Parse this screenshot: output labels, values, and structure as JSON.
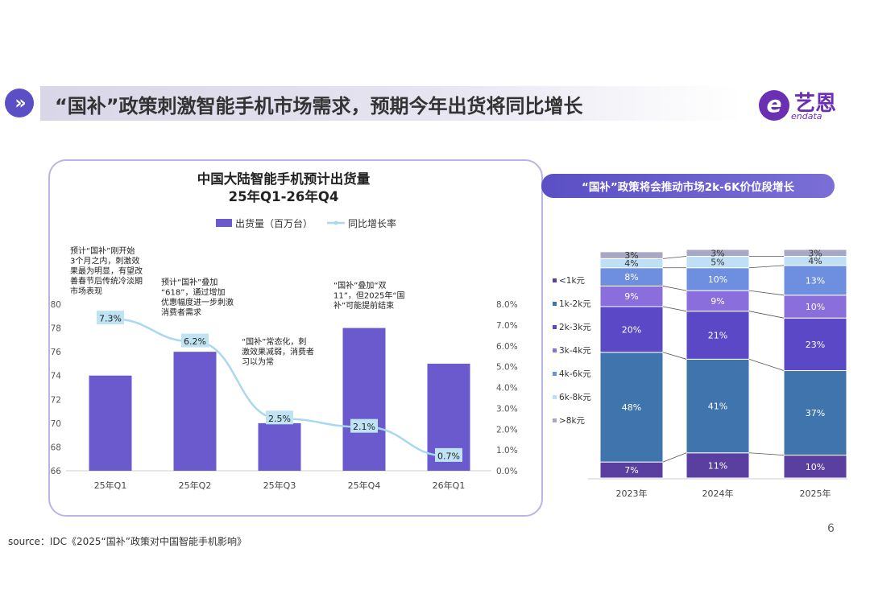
{
  "header": {
    "icon": "chevron-double-right-icon",
    "title": "“国补”政策刺激智能手机市场需求，预期今年出货将同比增长",
    "logo_cn": "艺恩",
    "logo_en": "endata",
    "logo_letter": "e"
  },
  "right_panel": {
    "title": "“国补”政策将会推动市场2k-6K价位段增长"
  },
  "footer": {
    "source": "source：IDC《2025“国补”政策对中国智能手机影响》",
    "page": "6"
  },
  "colors": {
    "accent": "#5a4fc4",
    "bar": "#6a5acd",
    "line": "#a8d8ef"
  },
  "chart_data": [
    {
      "type": "bar",
      "title": "中国大陆智能手机预计出货量",
      "subtitle": "25年Q1-26年Q4",
      "categories": [
        "25年Q1",
        "25年Q2",
        "25年Q3",
        "25年Q4",
        "26年Q1"
      ],
      "series": [
        {
          "name": "出货量（百万台）",
          "type": "bar",
          "axis": "left",
          "values": [
            74,
            76,
            70,
            78,
            75
          ]
        },
        {
          "name": "同比增长率",
          "type": "line",
          "axis": "right",
          "values": [
            7.3,
            6.2,
            2.5,
            2.1,
            0.7
          ],
          "labels": [
            "7.3%",
            "6.2%",
            "2.5%",
            "2.1%",
            "0.7%"
          ]
        }
      ],
      "ylim_left": [
        66,
        80
      ],
      "yticks_left": [
        "66",
        "68",
        "70",
        "72",
        "74",
        "76",
        "78",
        "80"
      ],
      "ylim_right": [
        0,
        8
      ],
      "yticks_right": [
        "0.0%",
        "1.0%",
        "2.0%",
        "3.0%",
        "4.0%",
        "5.0%",
        "6.0%",
        "7.0%",
        "8.0%"
      ],
      "legend_position": "top",
      "annotations": [
        {
          "lines": [
            "预计“国补”刚开始",
            "3个月之内，刺激效",
            "果最为明显，有望改",
            "善春节后传统冷淡期",
            "市场表现"
          ]
        },
        {
          "lines": [
            "预计“国补”叠加",
            "“618”，通过增加",
            "优惠幅度进一步刺激",
            "消费者需求"
          ]
        },
        {
          "lines": [
            "“国补”常态化，刺",
            "激效果减弱，消费者",
            "习以为常"
          ]
        },
        {
          "lines": [
            "“国补”叠加“双",
            "11”，但2025年“国",
            "补”可能提前结束"
          ]
        }
      ]
    },
    {
      "type": "bar",
      "stacked": true,
      "percent": true,
      "categories": [
        "2023年",
        "2024年",
        "2025年"
      ],
      "series": [
        {
          "name": "<1k元",
          "color": "#5b3fa0",
          "values": [
            7,
            11,
            10
          ]
        },
        {
          "name": "1k-2k元",
          "color": "#3f74ad",
          "values": [
            48,
            41,
            37
          ]
        },
        {
          "name": "2k-3k元",
          "color": "#5a48c6",
          "values": [
            20,
            21,
            23
          ]
        },
        {
          "name": "3k-4k元",
          "color": "#8a6fdc",
          "values": [
            9,
            9,
            10
          ]
        },
        {
          "name": "4k-6k元",
          "color": "#6e8fe0",
          "values": [
            8,
            10,
            13
          ]
        },
        {
          "name": "6k-8k元",
          "color": "#bfe0f4",
          "values": [
            4,
            5,
            4
          ]
        },
        {
          "name": ">8k元",
          "color": "#a8a8c4",
          "values": [
            3,
            3,
            3
          ]
        }
      ],
      "legend_position": "left",
      "grid": false
    }
  ]
}
